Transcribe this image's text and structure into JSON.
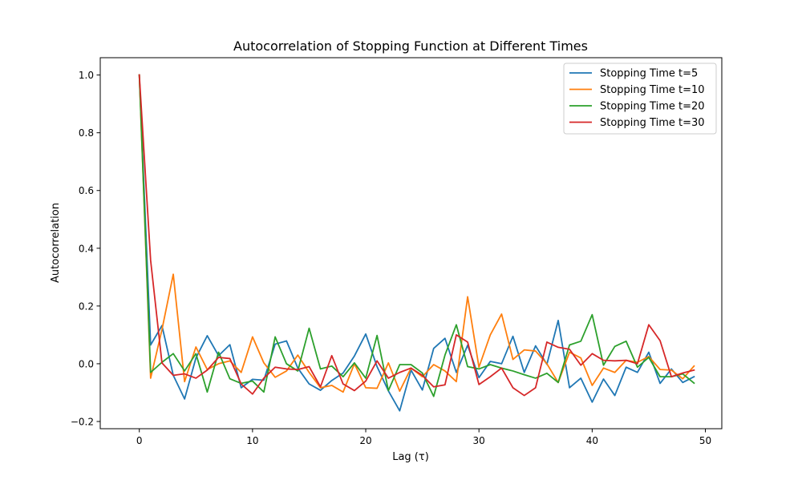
{
  "chart_data": {
    "type": "line",
    "title": "Autocorrelation of Stopping Function at Different Times",
    "xlabel": "Lag (τ)",
    "ylabel": "Autocorrelation",
    "xlim": [
      -3.45,
      51.45
    ],
    "ylim": [
      -0.225,
      1.06
    ],
    "xticks": [
      0,
      10,
      20,
      30,
      40,
      50
    ],
    "yticks": [
      -0.2,
      0.0,
      0.2,
      0.4,
      0.6,
      0.8,
      1.0
    ],
    "xtick_labels": [
      "0",
      "10",
      "20",
      "30",
      "40",
      "50"
    ],
    "ytick_labels": [
      "−0.2",
      "0.0",
      "0.2",
      "0.4",
      "0.6",
      "0.8",
      "1.0"
    ],
    "grid": false,
    "legend_position": "top-right",
    "x": [
      0,
      1,
      2,
      3,
      4,
      5,
      6,
      7,
      8,
      9,
      10,
      11,
      12,
      13,
      14,
      15,
      16,
      17,
      18,
      19,
      20,
      21,
      22,
      23,
      24,
      25,
      26,
      27,
      28,
      29,
      30,
      31,
      32,
      33,
      34,
      35,
      36,
      37,
      38,
      39,
      40,
      41,
      42,
      43,
      44,
      45,
      46,
      47,
      48,
      49
    ],
    "series": [
      {
        "name": "Stopping Time t=5",
        "color": "#1f77b4",
        "values": [
          1.0,
          0.065,
          0.132,
          -0.04,
          -0.122,
          0.02,
          0.097,
          0.028,
          0.066,
          -0.083,
          -0.054,
          -0.057,
          0.068,
          0.079,
          -0.015,
          -0.07,
          -0.092,
          -0.058,
          -0.032,
          0.027,
          0.103,
          -0.01,
          -0.094,
          -0.163,
          -0.022,
          -0.091,
          0.053,
          0.088,
          -0.03,
          0.064,
          -0.048,
          0.008,
          0.0,
          0.095,
          -0.03,
          0.062,
          -0.002,
          0.15,
          -0.083,
          -0.05,
          -0.133,
          -0.053,
          -0.11,
          -0.012,
          -0.03,
          0.04,
          -0.068,
          -0.018,
          -0.065,
          -0.045
        ]
      },
      {
        "name": "Stopping Time t=10",
        "color": "#ff7f0e",
        "values": [
          1.0,
          -0.05,
          0.118,
          0.31,
          -0.062,
          0.058,
          -0.02,
          0.0,
          0.01,
          -0.03,
          0.093,
          0.003,
          -0.047,
          -0.025,
          0.03,
          -0.03,
          -0.083,
          -0.075,
          -0.098,
          0.0,
          -0.083,
          -0.085,
          0.003,
          -0.095,
          -0.015,
          -0.045,
          -0.003,
          -0.025,
          -0.062,
          0.232,
          -0.012,
          0.1,
          0.172,
          0.015,
          0.048,
          0.044,
          0.0,
          -0.065,
          0.04,
          0.02,
          -0.075,
          -0.015,
          -0.03,
          0.012,
          0.005,
          0.025,
          -0.02,
          -0.022,
          -0.052,
          -0.008
        ]
      },
      {
        "name": "Stopping Time t=20",
        "color": "#2ca02c",
        "values": [
          1.0,
          -0.03,
          0.005,
          0.035,
          -0.025,
          0.035,
          -0.098,
          0.04,
          -0.052,
          -0.068,
          -0.06,
          -0.098,
          0.093,
          0.0,
          -0.025,
          0.123,
          -0.018,
          -0.008,
          -0.045,
          0.003,
          -0.05,
          0.098,
          -0.093,
          -0.003,
          -0.003,
          -0.032,
          -0.113,
          0.03,
          0.135,
          -0.01,
          -0.018,
          -0.003,
          -0.015,
          -0.025,
          -0.038,
          -0.05,
          -0.033,
          -0.065,
          0.065,
          0.078,
          0.17,
          -0.005,
          0.06,
          0.078,
          -0.012,
          0.022,
          -0.045,
          -0.045,
          -0.035,
          -0.067
        ]
      },
      {
        "name": "Stopping Time t=30",
        "color": "#d62728",
        "values": [
          1.0,
          0.358,
          0.003,
          -0.04,
          -0.035,
          -0.05,
          -0.022,
          0.022,
          0.018,
          -0.07,
          -0.105,
          -0.05,
          -0.012,
          -0.018,
          -0.02,
          -0.01,
          -0.08,
          0.028,
          -0.07,
          -0.093,
          -0.06,
          0.01,
          -0.05,
          -0.03,
          -0.015,
          -0.04,
          -0.08,
          -0.073,
          0.1,
          0.075,
          -0.072,
          -0.045,
          -0.015,
          -0.083,
          -0.11,
          -0.083,
          0.075,
          0.057,
          0.05,
          -0.005,
          0.035,
          0.012,
          0.01,
          0.012,
          0.0,
          0.135,
          0.08,
          -0.045,
          -0.032,
          -0.022
        ]
      }
    ]
  }
}
